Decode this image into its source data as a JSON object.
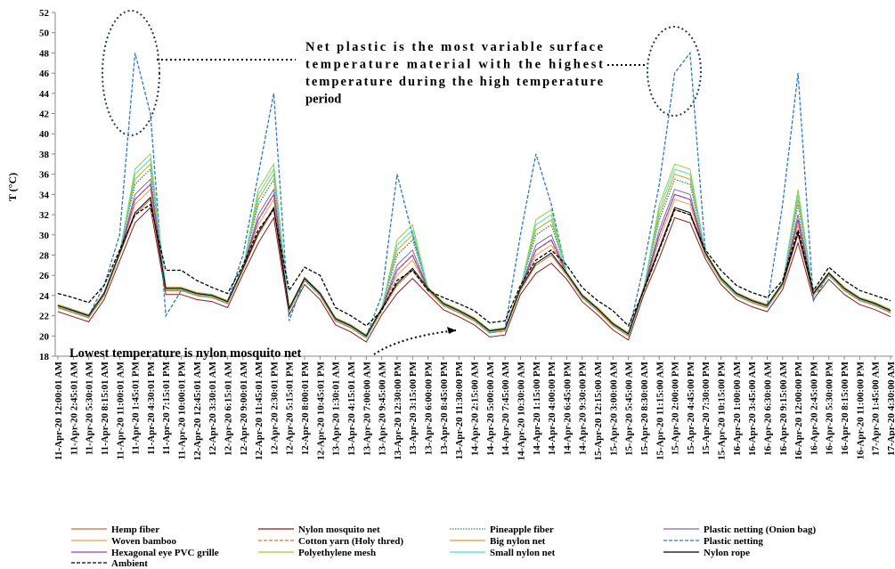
{
  "chart_data": {
    "type": "line",
    "ylabel": "T (°C)",
    "ylim": [
      18,
      52
    ],
    "yticks": [
      18,
      20,
      22,
      24,
      26,
      28,
      30,
      32,
      34,
      36,
      38,
      40,
      42,
      44,
      46,
      48,
      50,
      52
    ],
    "grid": false,
    "legend": "bottom",
    "annotations": [
      {
        "lines": [
          "Net plastic is the most variable surface",
          "temperature material with the highest",
          "temperature during the high temperature",
          "period"
        ]
      },
      {
        "lines": [
          "Lowest temperature is nylon mosquito net"
        ]
      }
    ],
    "categories": [
      "11-Apr-20 12:00:01 AM",
      "11-Apr-20 2:45:01 AM",
      "11-Apr-20 5:30:01 AM",
      "11-Apr-20 8:15:01 AM",
      "11-Apr-20 11:00:01 AM",
      "11-Apr-20 1:45:01 PM",
      "11-Apr-20 4:30:01 PM",
      "11-Apr-20 7:15:01 PM",
      "11-Apr-20 10:00:01 PM",
      "12-Apr-20 12:45:01 AM",
      "12-Apr-20 3:30:01 AM",
      "12-Apr-20 6:15:01 AM",
      "12-Apr-20 9:00:01 AM",
      "12-Apr-20 11:45:01 AM",
      "12-Apr-20 2:30:01 PM",
      "12-Apr-20 5:15:01 PM",
      "12-Apr-20 8:00:01 PM",
      "12-Apr-20 10:45:01 PM",
      "13-Apr-20 1:30:01 AM",
      "13-Apr-20 4:15:01 AM",
      "13-Apr-20 7:00:00 AM",
      "13-Apr-20 9:45:00 AM",
      "13-Apr-20 12:30:00 PM",
      "13-Apr-20 3:15:00 PM",
      "13-Apr-20 6:00:00 PM",
      "13-Apr-20 8:45:00 PM",
      "13-Apr-20 11:30:00 PM",
      "14-Apr-20 2:15:00 AM",
      "14-Apr-20 5:00:00 AM",
      "14-Apr-20 7:45:00 AM",
      "14-Apr-20 10:30:00 AM",
      "14-Apr-20 1:15:00 PM",
      "14-Apr-20 4:00:00 PM",
      "14-Apr-20 6:45:00 PM",
      "14-Apr-20 9:30:00 PM",
      "15-Apr-20 12:15:00 AM",
      "15-Apr-20 3:00:00 AM",
      "15-Apr-20 5:45:00 AM",
      "15-Apr-20 8:30:00 AM",
      "15-Apr-20 11:15:00 AM",
      "15-Apr-20 2:00:00 PM",
      "15-Apr-20 4:45:00 PM",
      "15-Apr-20 7:30:00 PM",
      "15-Apr-20 10:15:00 PM",
      "16-Apr-20 1:00:00 AM",
      "16-Apr-20 3:45:00 AM",
      "16-Apr-20 6:30:00 AM",
      "16-Apr-20 9:15:00 AM",
      "16-Apr-20 12:00:00 PM",
      "16-Apr-20 2:45:00 PM",
      "16-Apr-20 5:30:00 PM",
      "16-Apr-20 8:15:00 PM",
      "16-Apr-20 11:00:00 PM",
      "17-Apr-20 1:45:00 AM",
      "17-Apr-20 4:30:00 AM"
    ],
    "series": [
      {
        "name": "Hemp fiber",
        "color": "#c0703a",
        "dash": "solid",
        "values": [
          22.8,
          22.3,
          21.8,
          24,
          28,
          32,
          33.5,
          24.5,
          24.5,
          24,
          23.8,
          23.2,
          26.5,
          30,
          32.5,
          22.5,
          25.5,
          24,
          21.5,
          20.8,
          19.8,
          22.5,
          25,
          26.5,
          24.5,
          23,
          22.3,
          21.5,
          20.3,
          20.5,
          24.5,
          27,
          28,
          26,
          23.8,
          22.5,
          21,
          20,
          24.5,
          28.5,
          32.5,
          32,
          28,
          25.5,
          24,
          23.3,
          22.8,
          25,
          30,
          24,
          26,
          24.5,
          23.5,
          23,
          22.3
        ]
      },
      {
        "name": "Nylon mosquito net",
        "color": "#8b1a1a",
        "dash": "solid",
        "values": [
          22.4,
          21.9,
          21.4,
          23.6,
          27.4,
          31.2,
          32.7,
          24.1,
          24.1,
          23.6,
          23.4,
          22.8,
          26.1,
          29.2,
          31.7,
          22.1,
          25.1,
          23.6,
          21.1,
          20.4,
          19.4,
          22.1,
          24.2,
          25.7,
          24.1,
          22.6,
          21.9,
          21.1,
          19.9,
          20.1,
          24.1,
          26.2,
          27.2,
          25.6,
          23.4,
          22.1,
          20.6,
          19.6,
          24.1,
          27.7,
          31.7,
          31.2,
          27.6,
          25.1,
          23.6,
          22.9,
          22.4,
          24.6,
          29.2,
          23.6,
          25.6,
          24.1,
          23.1,
          22.6,
          21.9
        ]
      },
      {
        "name": "Pineapple fiber",
        "color": "#2e8b57",
        "dash": "dotted",
        "values": [
          23.1,
          22.6,
          22.1,
          24.3,
          28.3,
          35,
          36.5,
          24.8,
          24.8,
          24.3,
          24.1,
          23.5,
          26.8,
          33,
          35.5,
          22.8,
          25.8,
          24.3,
          21.8,
          21.1,
          20.1,
          22.8,
          28,
          29.5,
          24.8,
          23.3,
          22.6,
          21.8,
          20.6,
          20.8,
          24.8,
          30,
          31,
          26.3,
          24.1,
          22.8,
          21.3,
          20.3,
          24.8,
          31.5,
          35.5,
          35,
          28.3,
          25.8,
          24.3,
          23.6,
          23.1,
          25.3,
          33,
          24.3,
          26.3,
          24.8,
          23.8,
          23.3,
          22.6
        ]
      },
      {
        "name": "Plastic netting (Onion bag)",
        "color": "#7b68ae",
        "dash": "solid",
        "values": [
          23,
          22.5,
          22,
          24.2,
          28.2,
          34,
          35.5,
          24.7,
          24.7,
          24.2,
          24,
          23.4,
          26.7,
          32,
          34.5,
          22.7,
          25.7,
          24.2,
          21.7,
          21,
          20,
          22.7,
          27,
          28.5,
          24.7,
          23.2,
          22.5,
          21.7,
          20.5,
          20.7,
          24.7,
          29,
          30,
          26.2,
          24,
          22.7,
          21.2,
          20.2,
          24.7,
          30.5,
          34.5,
          34,
          28.2,
          25.7,
          24.2,
          23.5,
          23,
          25.2,
          32,
          24.2,
          26.2,
          24.7,
          23.7,
          23.2,
          22.5
        ]
      },
      {
        "name": "Woven bamboo",
        "color": "#f39c4a",
        "dash": "solid",
        "values": [
          22.9,
          22.4,
          21.9,
          24.1,
          28.1,
          33,
          34.5,
          24.6,
          24.6,
          24.1,
          23.9,
          23.3,
          26.6,
          31,
          33.5,
          22.6,
          25.6,
          24.1,
          21.6,
          20.9,
          19.9,
          22.6,
          26,
          27.5,
          24.6,
          23.1,
          22.4,
          21.6,
          20.4,
          20.6,
          24.6,
          28,
          29,
          26.1,
          23.9,
          22.6,
          21.1,
          20.1,
          24.6,
          29.5,
          33.5,
          33,
          28.1,
          25.6,
          24.1,
          23.4,
          22.9,
          25.1,
          31,
          24.1,
          26.1,
          24.6,
          23.6,
          23.1,
          22.4
        ]
      },
      {
        "name": "Cotton yarn (Holy thred)",
        "color": "#e8702a",
        "dash": "dashed",
        "values": [
          22.8,
          22.3,
          21.8,
          24,
          28,
          33.5,
          35,
          24.5,
          24.5,
          24,
          23.8,
          23.2,
          26.5,
          31.5,
          34,
          22.5,
          25.5,
          24,
          21.5,
          20.8,
          19.8,
          22.5,
          26.5,
          28,
          24.5,
          23,
          22.3,
          21.5,
          20.3,
          20.5,
          24.5,
          28.5,
          29.5,
          26,
          23.8,
          22.5,
          21,
          20,
          24.5,
          30,
          34,
          33.5,
          28,
          25.5,
          24,
          23.3,
          22.8,
          25,
          31.5,
          24,
          26,
          24.5,
          23.5,
          23,
          22.3
        ]
      },
      {
        "name": "Big nylon net",
        "color": "#d4a017",
        "dash": "solid",
        "values": [
          23.1,
          22.6,
          22.1,
          24.3,
          28.3,
          35.5,
          37,
          24.8,
          24.8,
          24.3,
          24.1,
          23.5,
          26.8,
          33.5,
          36,
          22.8,
          25.8,
          24.3,
          21.8,
          21.1,
          20.1,
          22.8,
          28.5,
          30,
          24.8,
          23.3,
          22.6,
          21.8,
          20.6,
          20.8,
          24.8,
          30.5,
          31.5,
          26.3,
          24.1,
          22.8,
          21.3,
          20.3,
          24.8,
          32,
          36,
          35.5,
          28.3,
          25.8,
          24.3,
          23.6,
          23.1,
          25.3,
          33.5,
          24.3,
          26.3,
          24.8,
          23.8,
          23.3,
          22.6
        ]
      },
      {
        "name": "Plastic netting",
        "color": "#2a7ac0",
        "dash": "dashed",
        "values": [
          23,
          22.5,
          22,
          25,
          30,
          48,
          42,
          22,
          24.5,
          24.2,
          24,
          23.4,
          28,
          36,
          44,
          21.5,
          25.7,
          24.2,
          21.7,
          21,
          20,
          24,
          36,
          30,
          24.7,
          23.2,
          22.5,
          21.7,
          20.5,
          20.7,
          30,
          38,
          33,
          26.2,
          24,
          22.7,
          21.2,
          20.2,
          27,
          35,
          46,
          48,
          28.2,
          25.7,
          24.2,
          23.5,
          23,
          33,
          46,
          23.5,
          26.2,
          24.7,
          23.7,
          23.2,
          22.5
        ]
      },
      {
        "name": "Hexagonal eye PVC grille",
        "color": "#8e44ad",
        "dash": "solid",
        "values": [
          23,
          22.5,
          22,
          24.2,
          28.2,
          33.5,
          35,
          24.7,
          24.7,
          24.2,
          24,
          23.4,
          26.7,
          31.5,
          34,
          22.7,
          25.7,
          24.2,
          21.7,
          21,
          20,
          22.7,
          26.5,
          28,
          24.7,
          23.2,
          22.5,
          21.7,
          20.5,
          20.7,
          24.7,
          28.5,
          29.5,
          26.2,
          24,
          22.7,
          21.2,
          20.2,
          24.7,
          30,
          34,
          33.5,
          28.2,
          25.7,
          24.2,
          23.5,
          23,
          25.2,
          31.5,
          24.2,
          26.2,
          24.7,
          23.7,
          23.2,
          22.5
        ]
      },
      {
        "name": "Polyethylene mesh",
        "color": "#9acd32",
        "dash": "solid",
        "values": [
          23,
          22.5,
          22,
          24.2,
          28.2,
          36.5,
          38,
          24.7,
          24.7,
          24.2,
          24,
          23.4,
          26.7,
          34.5,
          37,
          22.7,
          25.7,
          24.2,
          21.7,
          21,
          20,
          22.7,
          29.5,
          31,
          24.7,
          23.2,
          22.5,
          21.7,
          20.5,
          20.7,
          24.7,
          31.5,
          32.5,
          26.2,
          24,
          22.7,
          21.2,
          20.2,
          24.7,
          33,
          37,
          36.5,
          28.2,
          25.7,
          24.2,
          23.5,
          23,
          25.2,
          34.5,
          24.2,
          26.2,
          24.7,
          23.7,
          23.2,
          22.5
        ]
      },
      {
        "name": "Small nylon net",
        "color": "#40e0d0",
        "dash": "solid",
        "values": [
          22.9,
          22.4,
          21.9,
          24.1,
          28.1,
          36,
          37.5,
          24.6,
          24.6,
          24.1,
          23.9,
          23.3,
          26.6,
          34,
          36.5,
          22.6,
          25.6,
          24.1,
          21.6,
          20.9,
          19.9,
          22.6,
          29,
          30.5,
          24.6,
          23.1,
          22.4,
          21.6,
          20.4,
          20.6,
          24.6,
          31,
          32,
          26.1,
          23.9,
          22.6,
          21.1,
          20.1,
          24.6,
          32.5,
          36.5,
          36,
          28.1,
          25.6,
          24.1,
          23.4,
          22.9,
          25.1,
          34,
          24.1,
          26.1,
          24.6,
          23.6,
          23.1,
          22.4
        ]
      },
      {
        "name": "Nylon rope",
        "color": "#000000",
        "dash": "solid",
        "values": [
          23,
          22.5,
          22,
          24.2,
          28.2,
          32.2,
          33.7,
          24.7,
          24.7,
          24.2,
          24,
          23.4,
          26.7,
          30.2,
          32.7,
          22.7,
          25.7,
          24.2,
          21.7,
          21,
          20,
          22.7,
          25.2,
          26.7,
          24.7,
          23.2,
          22.5,
          21.7,
          20.5,
          20.7,
          24.7,
          27.2,
          28.2,
          26.2,
          24,
          22.7,
          21.2,
          20.2,
          24.7,
          28.7,
          32.7,
          32.2,
          28.2,
          25.7,
          24.2,
          23.5,
          23,
          25.2,
          30.2,
          24.2,
          26.2,
          24.7,
          23.7,
          23.2,
          22.5
        ]
      },
      {
        "name": "Ambient",
        "color": "#000000",
        "dash": "dashed",
        "values": [
          24.2,
          23.8,
          23.3,
          25,
          28.5,
          32,
          33,
          26.5,
          26.5,
          25.5,
          24.8,
          24.2,
          27,
          30.5,
          32.5,
          24.5,
          26.8,
          26,
          22.8,
          22,
          21,
          22.5,
          25.5,
          26.5,
          24.5,
          23.8,
          23.2,
          22.5,
          21.3,
          21.5,
          25,
          27.5,
          28.5,
          27,
          24.8,
          23.5,
          22.5,
          21,
          24.5,
          28.5,
          32.5,
          32,
          28.5,
          26.5,
          25,
          24.3,
          23.8,
          25.5,
          30.5,
          24.5,
          26.8,
          25.5,
          24.5,
          24,
          23.5
        ]
      }
    ]
  }
}
